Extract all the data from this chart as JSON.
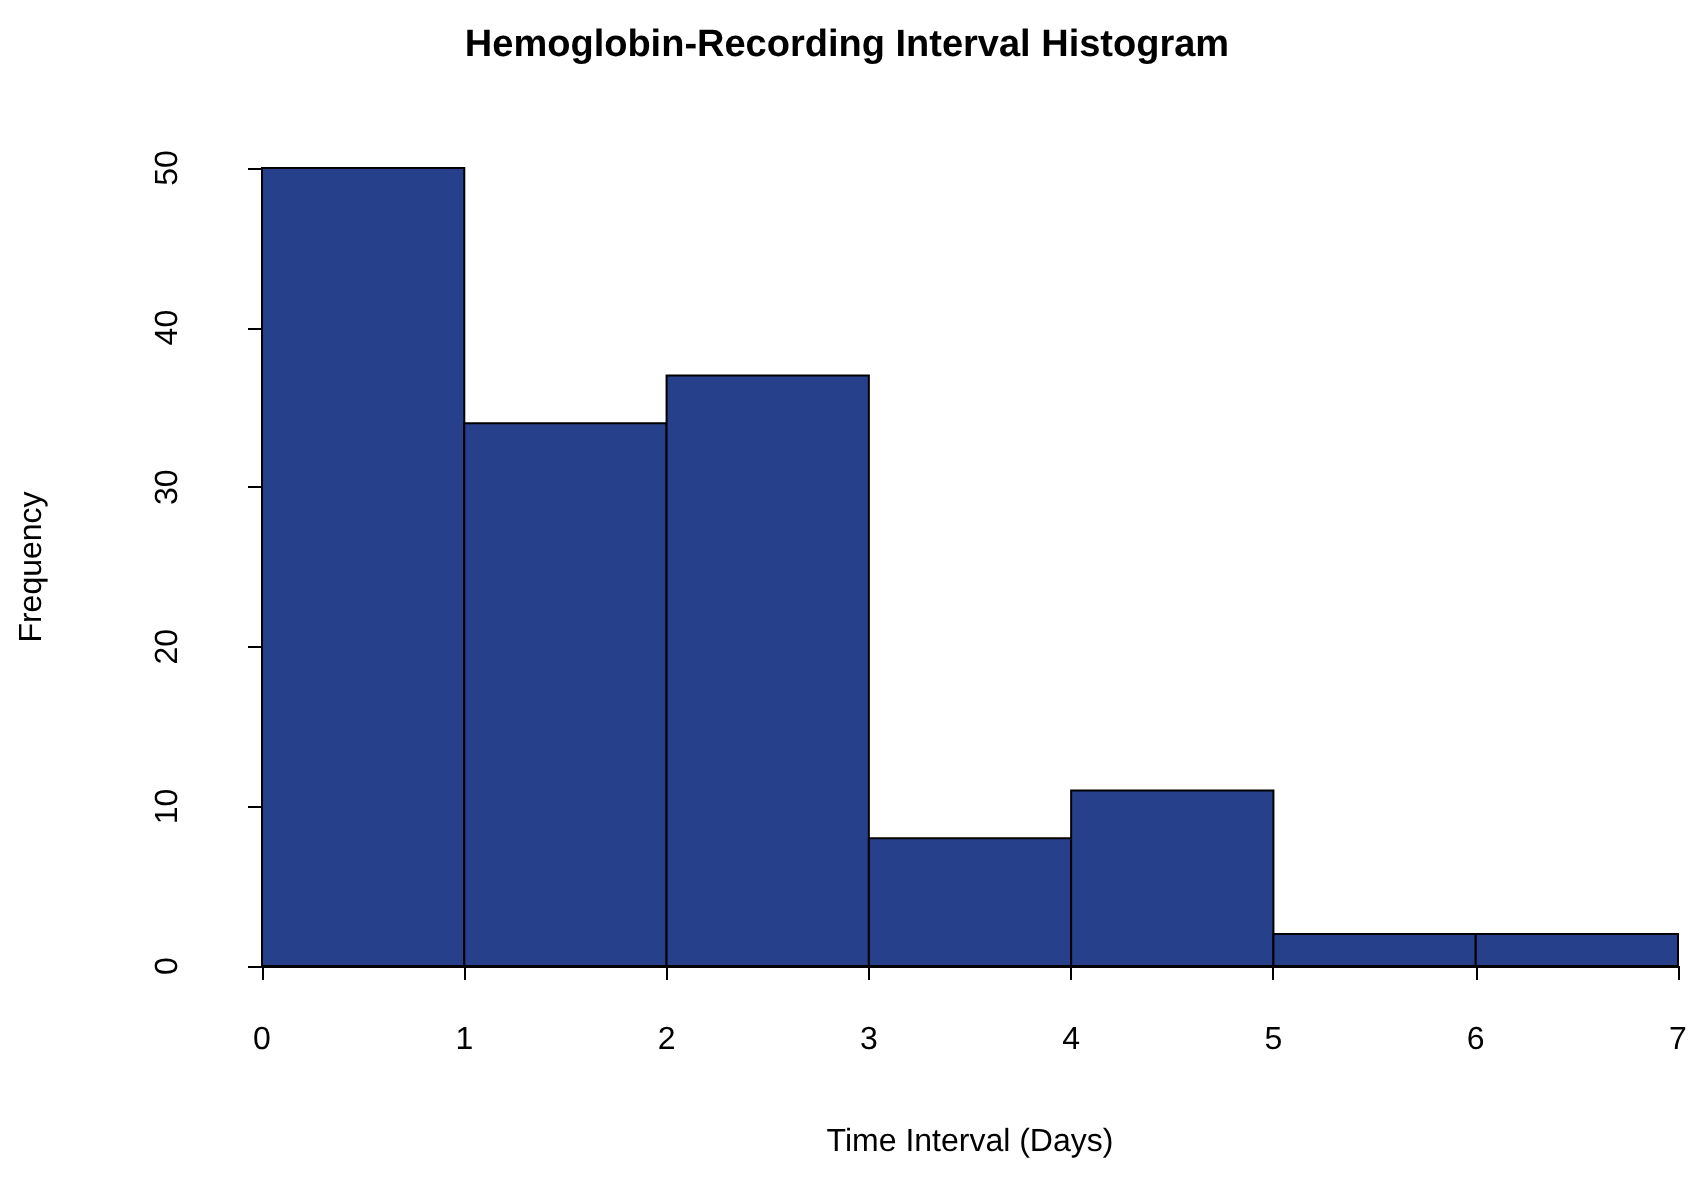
{
  "chart_data": {
    "type": "histogram",
    "title": "Hemoglobin-Recording Interval Histogram",
    "xlabel": "Time Interval (Days)",
    "ylabel": "Frequency",
    "bins": [
      0,
      1,
      2,
      3,
      4,
      5,
      6,
      7
    ],
    "values": [
      50,
      34,
      37,
      8,
      11,
      2,
      2
    ],
    "color": "#27408b",
    "xlim": [
      0,
      7
    ],
    "xticks": [
      0,
      1,
      2,
      3,
      4,
      5,
      6,
      7
    ],
    "ylim": [
      0,
      50
    ],
    "yticks": [
      0,
      10,
      20,
      30,
      40,
      50
    ],
    "grid": false,
    "legend": false
  }
}
